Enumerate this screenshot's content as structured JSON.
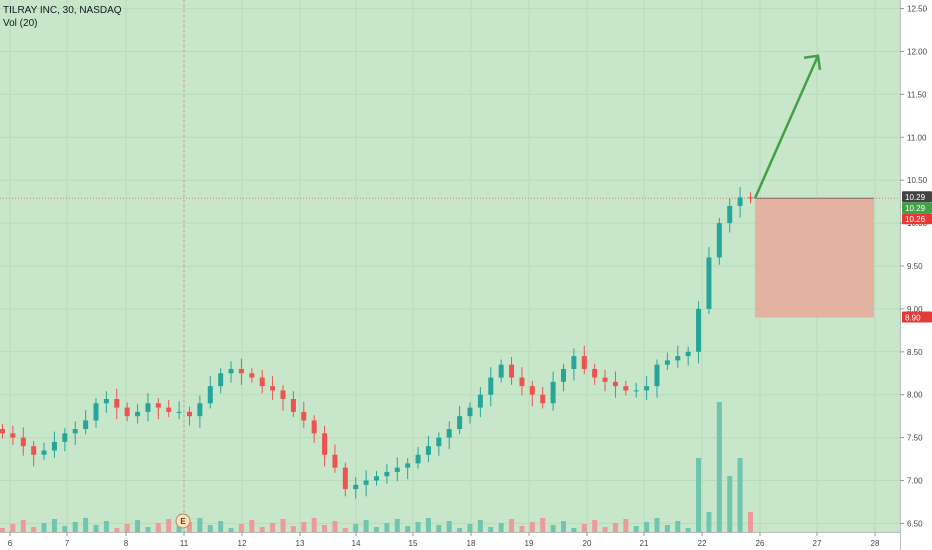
{
  "header": {
    "symbol_line": "TILRAY INC, 30, NASDAQ",
    "indicator": "Vol (20)"
  },
  "colors": {
    "background": "#c8e6c9",
    "up": "#26a69a",
    "down": "#ef5350",
    "vol_up": "#6fc5b0",
    "vol_down": "#ef9a9a",
    "arrow": "#43a047",
    "stop_zone": "#e8a89a"
  },
  "price_labels": {
    "current": "10.29",
    "entry": "10.29",
    "low_marker": "10.26",
    "stop": "8.90"
  },
  "event_marker": "E",
  "chart_data": {
    "type": "candlestick",
    "title": "TILRAY INC, 30, NASDAQ",
    "y_axis": {
      "range": [
        6.4,
        12.6
      ],
      "ticks": [
        "6.50",
        "7.00",
        "7.50",
        "8.00",
        "8.50",
        "9.00",
        "9.50",
        "10.00",
        "10.50",
        "11.00",
        "11.50",
        "12.00",
        "12.50"
      ]
    },
    "x_axis": {
      "ticks": [
        "6",
        "7",
        "8",
        "11",
        "12",
        "13",
        "14",
        "15",
        "18",
        "19",
        "20",
        "21",
        "22",
        "26",
        "27",
        "28"
      ]
    },
    "approx_closes": [
      7.55,
      7.5,
      7.4,
      7.3,
      7.35,
      7.45,
      7.55,
      7.6,
      7.7,
      7.9,
      7.95,
      7.85,
      7.75,
      7.8,
      7.9,
      7.85,
      7.8,
      7.8,
      7.75,
      7.9,
      8.1,
      8.25,
      8.3,
      8.25,
      8.2,
      8.1,
      8.05,
      7.95,
      7.8,
      7.7,
      7.55,
      7.3,
      7.15,
      6.9,
      6.95,
      7.0,
      7.05,
      7.1,
      7.15,
      7.2,
      7.3,
      7.4,
      7.5,
      7.6,
      7.75,
      7.85,
      8.0,
      8.2,
      8.35,
      8.2,
      8.1,
      8.0,
      7.9,
      8.15,
      8.3,
      8.45,
      8.3,
      8.2,
      8.15,
      8.1,
      8.05,
      8.05,
      8.1,
      8.35,
      8.4,
      8.45,
      8.5,
      9.0,
      9.6,
      10.0,
      10.2,
      10.3,
      10.29
    ],
    "trade_setup": {
      "entry": 10.29,
      "stop": 8.9,
      "arrow_target": 11.95
    },
    "volume_series": "Vol (20)"
  }
}
